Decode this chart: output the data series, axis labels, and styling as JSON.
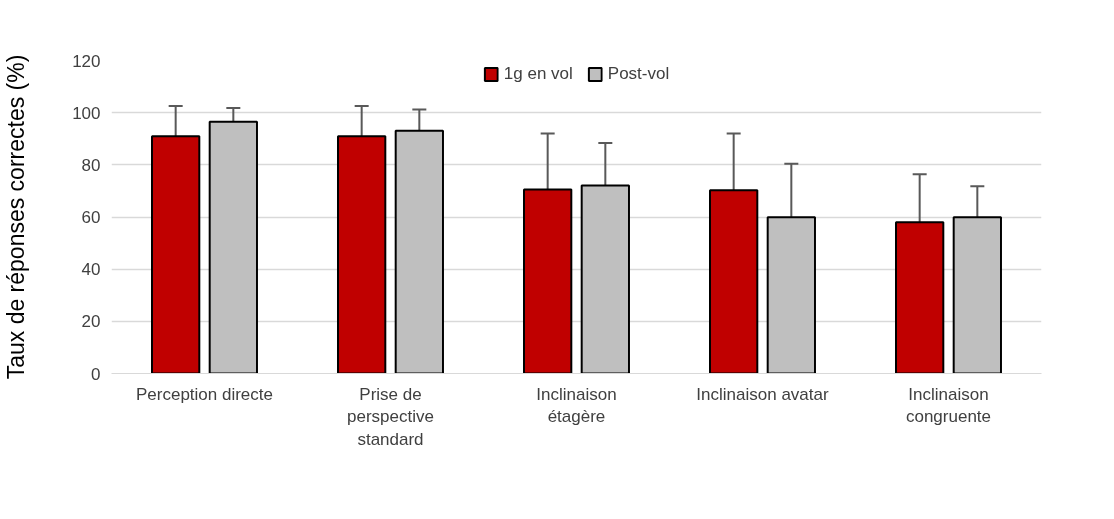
{
  "chart_data": {
    "type": "bar",
    "ylabel": "Taux de réponses correctes (%)",
    "categories": [
      "Perception directe",
      "Prise de perspective standard",
      "Inclinaison étagère",
      "Inclinaison avatar",
      "Inclinaison congruente"
    ],
    "series": [
      {
        "name": "1g en vol",
        "color": "#c00000",
        "values": [
          91,
          91,
          70.5,
          70.3,
          58
        ],
        "errors": [
          [
            91,
            102.6
          ],
          [
            91,
            102.6
          ],
          [
            70.5,
            92
          ],
          [
            70.3,
            92
          ],
          [
            58,
            76.4
          ]
        ]
      },
      {
        "name": "Post-vol",
        "color": "#bfbfbf",
        "values": [
          96.5,
          93.1,
          72.1,
          59.9,
          59.9
        ],
        "errors": [
          [
            96.5,
            101.8
          ],
          [
            93.1,
            101.2
          ],
          [
            72.1,
            88.4
          ],
          [
            59.9,
            80.4
          ],
          [
            59.9,
            71.8
          ]
        ]
      }
    ],
    "ylim": [
      0,
      120
    ],
    "yticks": [
      0,
      20,
      40,
      60,
      80,
      100,
      120
    ],
    "grid": "y",
    "legend": "top"
  }
}
